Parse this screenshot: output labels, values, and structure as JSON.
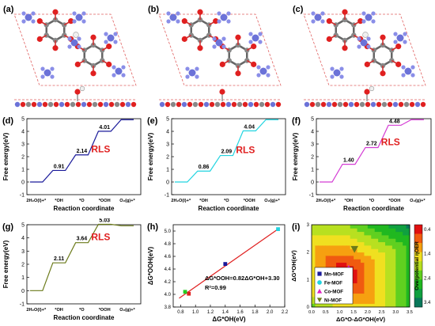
{
  "panels": {
    "a": {
      "label": "(a)"
    },
    "b": {
      "label": "(b)"
    },
    "c": {
      "label": "(c)"
    }
  },
  "chart_data": [
    {
      "id": "d",
      "label": "(d)",
      "type": "line",
      "color": "#1a1a9a",
      "ylabel": "Free energy(eV)",
      "xlabel": "Reaction coordinate",
      "categories": [
        "2H₂O(l)+*",
        "*OH",
        "*O",
        "*OOH",
        "O₂(g)+*"
      ],
      "values": [
        0,
        0.91,
        2.14,
        4.01,
        4.92
      ],
      "annotations": [
        "0.91",
        "2.14",
        "4.01"
      ],
      "rls": "RLS",
      "ylim": [
        -1,
        5
      ],
      "yticks": [
        "-1",
        "0",
        "1",
        "2",
        "3",
        "4",
        "5"
      ]
    },
    {
      "id": "e",
      "label": "(e)",
      "type": "line",
      "color": "#22d4e0",
      "ylabel": "Free energy(eV)",
      "xlabel": "Reaction coordinate",
      "categories": [
        "2H₂O(l)+*",
        "*OH",
        "*O",
        "*OOH",
        "O₂(g)+*"
      ],
      "values": [
        0,
        0.86,
        2.09,
        4.04,
        4.92
      ],
      "annotations": [
        "0.86",
        "2.09",
        "4.04"
      ],
      "rls": "RLS",
      "ylim": [
        -1,
        5
      ],
      "yticks": [
        "-1",
        "0",
        "1",
        "2",
        "3",
        "4",
        "5"
      ]
    },
    {
      "id": "f",
      "label": "(f)",
      "type": "line",
      "color": "#d43cd4",
      "ylabel": "Free energy(eV)",
      "xlabel": "Reaction coordinate",
      "categories": [
        "2H₂O(l)+*",
        "*OH",
        "*O",
        "*OOH",
        "O₂(g)+*"
      ],
      "values": [
        0,
        1.4,
        2.72,
        4.48,
        4.92
      ],
      "annotations": [
        "1.40",
        "2.72",
        "4.48"
      ],
      "rls": "RLS",
      "ylim": [
        -1,
        5
      ],
      "yticks": [
        "-1",
        "0",
        "1",
        "2",
        "3",
        "4",
        "5"
      ]
    },
    {
      "id": "g",
      "label": "(g)",
      "type": "line",
      "color": "#6b7a1a",
      "ylabel": "Free energy(eV)",
      "xlabel": "Reaction coordinate",
      "categories": [
        "2H₂O(l)+*",
        "*OH",
        "*O",
        "*OOH",
        "O₂(g)+*"
      ],
      "values": [
        0,
        2.11,
        3.64,
        5.03,
        4.92
      ],
      "annotations": [
        "2.11",
        "3.64",
        "5.03"
      ],
      "rls": "RLS",
      "ylim": [
        -1,
        5
      ],
      "yticks": [
        "-1",
        "0",
        "1",
        "2",
        "3",
        "4",
        "5"
      ]
    },
    {
      "id": "h",
      "label": "(h)",
      "type": "scatter",
      "xlabel": "ΔG*OH(eV)",
      "ylabel": "ΔG*OOH(eV)",
      "xlim": [
        0.7,
        2.2
      ],
      "ylim": [
        3.8,
        5.1
      ],
      "xticks": [
        "0.8",
        "1.0",
        "1.2",
        "1.4",
        "1.6",
        "1.8",
        "2.0",
        "2.2"
      ],
      "yticks": [
        "3.8",
        "4.0",
        "4.2",
        "4.4",
        "4.6",
        "4.8",
        "5.0"
      ],
      "points": [
        {
          "x": 0.91,
          "y": 4.01,
          "color": "#e02020"
        },
        {
          "x": 0.86,
          "y": 4.04,
          "color": "#22cc22"
        },
        {
          "x": 1.4,
          "y": 4.48,
          "color": "#1a1a9a"
        },
        {
          "x": 2.11,
          "y": 5.03,
          "color": "#22d4e0"
        }
      ],
      "fit": {
        "slope": 0.82,
        "intercept": 3.3,
        "x0": 0.78,
        "x1": 2.12,
        "color": "#e02020"
      },
      "equation": "ΔG*OOH=0.82ΔG*OH+3.30",
      "r2": "R²=0.99"
    },
    {
      "id": "i",
      "label": "(i)",
      "type": "heatmap",
      "xlabel": "ΔG*O-ΔG*OH(eV)",
      "ylabel": "ΔG*OH(eV)",
      "xlim": [
        0,
        3.5
      ],
      "ylim": [
        0,
        3
      ],
      "xticks": [
        "0.0",
        "0.5",
        "1.0",
        "1.5",
        "2.0",
        "2.5",
        "3.0",
        "3.5"
      ],
      "yticks": [
        "0",
        "1",
        "2",
        "3"
      ],
      "colorbar_title": "Overpotential ηOER",
      "colorbar_ticks": [
        "0.4",
        "1.4",
        "2.4",
        "3.4"
      ],
      "legend": [
        {
          "name": "Mn-MOF",
          "color": "#1a1a9a",
          "marker": "square"
        },
        {
          "name": "Fe-MOF",
          "color": "#22d4e0",
          "marker": "circle"
        },
        {
          "name": "Co-MOF",
          "color": "#e020c0",
          "marker": "triangle-up"
        },
        {
          "name": "Ni-MOF",
          "color": "#6b7a1a",
          "marker": "triangle-down"
        }
      ],
      "points": [
        {
          "name": "Mn-MOF",
          "x": 1.23,
          "y": 0.91
        },
        {
          "name": "Fe-MOF",
          "x": 1.23,
          "y": 0.86
        },
        {
          "name": "Co-MOF",
          "x": 1.32,
          "y": 1.4
        },
        {
          "name": "Ni-MOF",
          "x": 1.53,
          "y": 2.11
        }
      ]
    }
  ]
}
